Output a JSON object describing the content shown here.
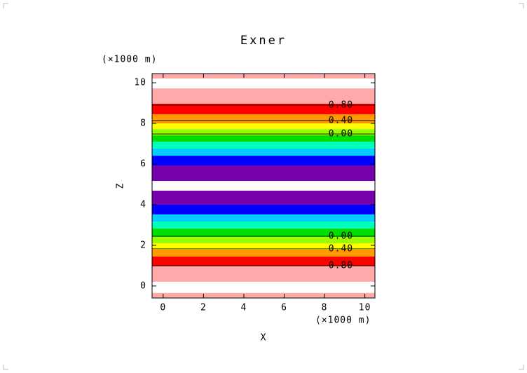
{
  "chart_data": {
    "type": "contour",
    "title": "Exner",
    "xlabel": "X",
    "ylabel": "Z",
    "x_unit": "(×1000 m)",
    "y_unit": "(×1000 m)",
    "xlim": [
      -0.55,
      10.5
    ],
    "ylim": [
      -0.59,
      10.45
    ],
    "xticks": [
      0,
      2,
      4,
      6,
      8,
      10
    ],
    "yticks": [
      0,
      2,
      4,
      6,
      8,
      10
    ],
    "bands": [
      {
        "z": [
          10.21,
          10.45
        ],
        "color": "#ffaaaa"
      },
      {
        "z": [
          8.97,
          9.72
        ],
        "color": "#ffaaaa"
      },
      {
        "z": [
          8.45,
          8.97
        ],
        "color": "#ff0000"
      },
      {
        "z": [
          8.0,
          8.45
        ],
        "color": "#ff9900"
      },
      {
        "z": [
          7.72,
          8.0
        ],
        "color": "#ffff00"
      },
      {
        "z": [
          7.41,
          7.72
        ],
        "color": "#99ff00"
      },
      {
        "z": [
          7.1,
          7.41
        ],
        "color": "#00dd00"
      },
      {
        "z": [
          6.76,
          7.1
        ],
        "color": "#00ffbb"
      },
      {
        "z": [
          6.41,
          6.76
        ],
        "color": "#00ccff"
      },
      {
        "z": [
          5.93,
          6.41
        ],
        "color": "#0000ff"
      },
      {
        "z": [
          5.17,
          5.93
        ],
        "color": "#7700aa"
      },
      {
        "z": [
          4.0,
          4.69
        ],
        "color": "#7700aa"
      },
      {
        "z": [
          3.52,
          4.0
        ],
        "color": "#0000ff"
      },
      {
        "z": [
          3.17,
          3.52
        ],
        "color": "#00ccff"
      },
      {
        "z": [
          2.83,
          3.17
        ],
        "color": "#00ffbb"
      },
      {
        "z": [
          2.41,
          2.83
        ],
        "color": "#00dd00"
      },
      {
        "z": [
          2.1,
          2.41
        ],
        "color": "#99ff00"
      },
      {
        "z": [
          1.79,
          2.1
        ],
        "color": "#ffff00"
      },
      {
        "z": [
          1.45,
          1.79
        ],
        "color": "#ff9900"
      },
      {
        "z": [
          0.97,
          1.45
        ],
        "color": "#ff0000"
      },
      {
        "z": [
          0.21,
          0.97
        ],
        "color": "#ffaaaa"
      },
      {
        "z": [
          -0.59,
          -0.34
        ],
        "color": "#ffaaaa"
      }
    ],
    "contours": [
      {
        "label": "0.80",
        "z": 8.9,
        "x": 8.2
      },
      {
        "label": "0.40",
        "z": 8.14,
        "x": 8.2
      },
      {
        "label": "0.00",
        "z": 7.48,
        "x": 8.2
      },
      {
        "label": "0.00",
        "z": 2.45,
        "x": 8.2
      },
      {
        "label": "0.40",
        "z": 1.83,
        "x": 8.2
      },
      {
        "label": "0.80",
        "z": 1.0,
        "x": 8.2
      }
    ]
  }
}
